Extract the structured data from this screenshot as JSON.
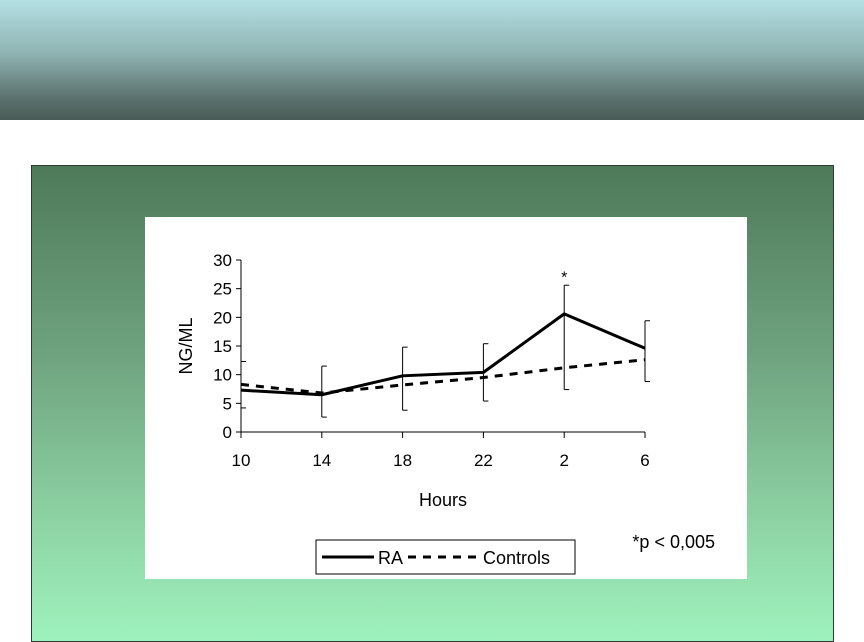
{
  "chart_data": {
    "type": "line",
    "categories": [
      "10",
      "14",
      "18",
      "22",
      "2",
      "6"
    ],
    "xlabel": "Hours",
    "ylabel": "NG/ML",
    "ylim": [
      0,
      30
    ],
    "yticks": [
      "0",
      "5",
      "10",
      "15",
      "20",
      "25",
      "30"
    ],
    "grid": false,
    "legend_position": "bottom",
    "series": [
      {
        "name": "RA",
        "style": "solid",
        "values": [
          7.3,
          6.5,
          9.8,
          10.4,
          20.6,
          14.6
        ],
        "error_low": [
          4.2,
          2.6,
          3.8,
          5.4,
          7.4,
          8.8
        ],
        "error_high": [
          12.3,
          11.5,
          14.8,
          15.4,
          25.6,
          19.4
        ]
      },
      {
        "name": "Controls",
        "style": "dashed",
        "values": [
          8.3,
          6.8,
          8.2,
          9.5,
          11.2,
          12.6
        ]
      }
    ],
    "annotations": [
      {
        "text": "*",
        "category": "2",
        "y": 27.5
      }
    ],
    "footnote": "*p < 0,005"
  }
}
